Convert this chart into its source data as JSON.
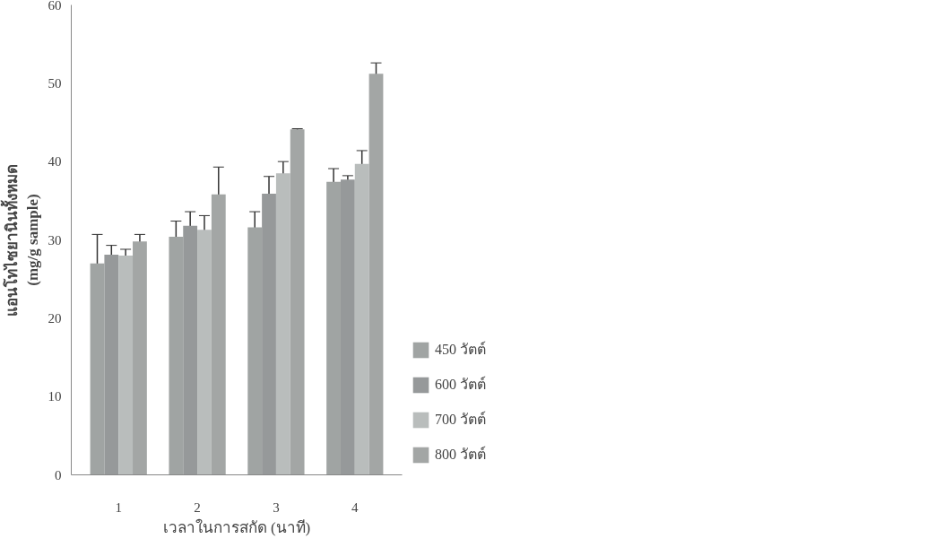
{
  "chart_data": {
    "type": "bar",
    "xlabel": "เวลาในการสกัด (นาที)",
    "ylabel": "แอนโทไซยานินทั้งหมด\n(mg/g sample)",
    "categories": [
      "1",
      "2",
      "3",
      "4"
    ],
    "series": [
      {
        "name": "450 วัตต์",
        "color": "#a0a4a3",
        "values": [
          27.0,
          30.4,
          31.6,
          37.4
        ],
        "errors": [
          3.7,
          2.0,
          2.0,
          1.7
        ]
      },
      {
        "name": "600 วัตต์",
        "color": "#96999a",
        "values": [
          28.1,
          31.8,
          35.9,
          37.7
        ],
        "errors": [
          1.2,
          1.8,
          2.2,
          0.5
        ]
      },
      {
        "name": "700 วัตต์",
        "color": "#b9bdbc",
        "values": [
          28.0,
          31.3,
          38.5,
          39.7
        ],
        "errors": [
          0.8,
          1.8,
          1.5,
          1.7
        ]
      },
      {
        "name": "800 วัตต์",
        "color": "#a3a6a5",
        "values": [
          29.8,
          35.8,
          44.1,
          51.2
        ],
        "errors": [
          0.9,
          3.5,
          0.1,
          1.4
        ]
      }
    ],
    "ylim": [
      0,
      60
    ],
    "yticks": [
      0,
      10,
      20,
      30,
      40,
      50,
      60
    ],
    "grid": false,
    "legend": "right"
  }
}
